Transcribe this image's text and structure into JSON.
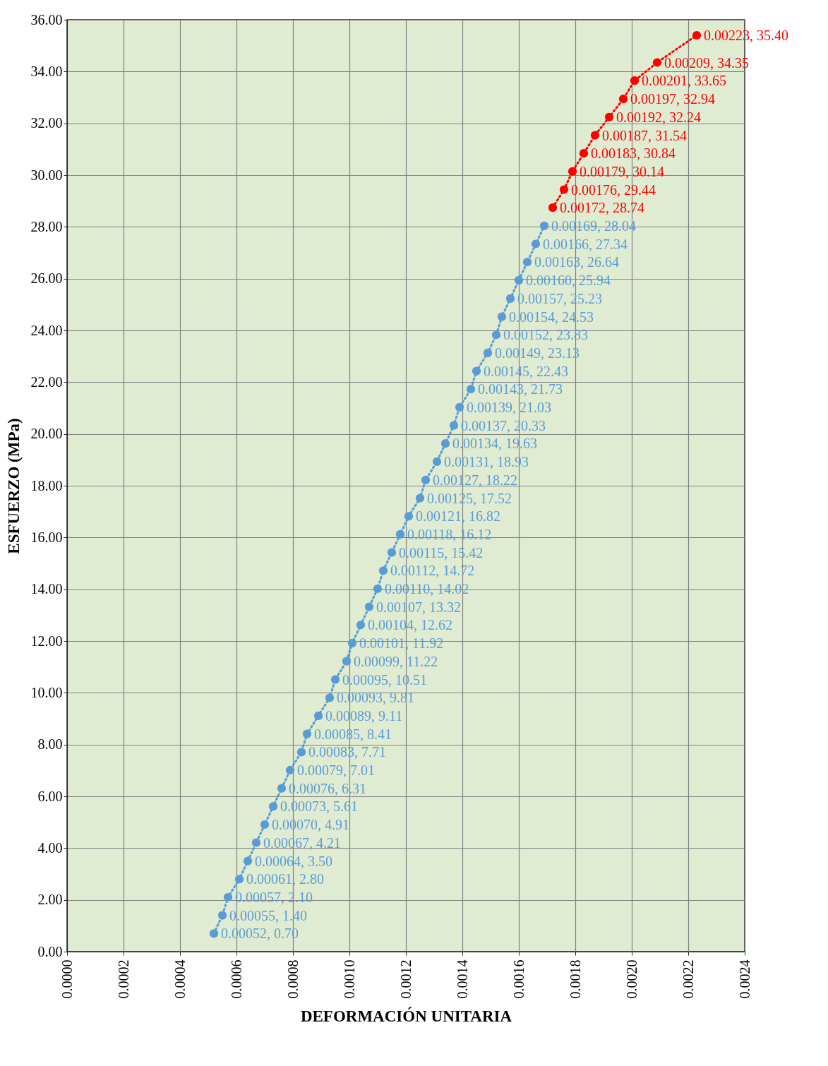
{
  "chart_data": {
    "type": "line",
    "xlabel": "DEFORMACIÓN UNITARIA",
    "ylabel": "ESFUERZO (MPa)",
    "xlim": [
      0,
      0.0024
    ],
    "ylim": [
      0,
      36
    ],
    "xticks": [
      {
        "value": 0,
        "label": "0.0000"
      },
      {
        "value": 0.0002,
        "label": "0.0002"
      },
      {
        "value": 0.0004,
        "label": "0.0004"
      },
      {
        "value": 0.0006,
        "label": "0.0006"
      },
      {
        "value": 0.0008,
        "label": "0.0008"
      },
      {
        "value": 0.001,
        "label": "0.0010"
      },
      {
        "value": 0.0012,
        "label": "0.0012"
      },
      {
        "value": 0.0014,
        "label": "0.0014"
      },
      {
        "value": 0.0016,
        "label": "0.0016"
      },
      {
        "value": 0.0018,
        "label": "0.0018"
      },
      {
        "value": 0.002,
        "label": "0.0020"
      },
      {
        "value": 0.0022,
        "label": "0.0022"
      },
      {
        "value": 0.0024,
        "label": "0.0024"
      }
    ],
    "yticks": [
      {
        "value": 0,
        "label": "0.00"
      },
      {
        "value": 2,
        "label": "2.00"
      },
      {
        "value": 4,
        "label": "4.00"
      },
      {
        "value": 6,
        "label": "6.00"
      },
      {
        "value": 8,
        "label": "8.00"
      },
      {
        "value": 10,
        "label": "10.00"
      },
      {
        "value": 12,
        "label": "12.00"
      },
      {
        "value": 14,
        "label": "14.00"
      },
      {
        "value": 16,
        "label": "16.00"
      },
      {
        "value": 18,
        "label": "18.00"
      },
      {
        "value": 20,
        "label": "20.00"
      },
      {
        "value": 22,
        "label": "22.00"
      },
      {
        "value": 24,
        "label": "24.00"
      },
      {
        "value": 26,
        "label": "26.00"
      },
      {
        "value": 28,
        "label": "28.00"
      },
      {
        "value": 30,
        "label": "30.00"
      },
      {
        "value": 32,
        "label": "32.00"
      },
      {
        "value": 34,
        "label": "34.00"
      },
      {
        "value": 36,
        "label": "36.00"
      }
    ],
    "grid": true,
    "marker": "circle",
    "line_style": "dotted",
    "series": [
      {
        "color": "#5b9bd5",
        "x": [
          0.00052,
          0.00055,
          0.00057,
          0.00061,
          0.00064,
          0.00067,
          0.0007,
          0.00073,
          0.00076,
          0.00079,
          0.00083,
          0.00085,
          0.00089,
          0.00093,
          0.00095,
          0.00099,
          0.00101,
          0.00104,
          0.00107,
          0.0011,
          0.00112,
          0.00115,
          0.00118,
          0.00121,
          0.00125,
          0.00127,
          0.00131,
          0.00134,
          0.00137,
          0.00139,
          0.00143,
          0.00145,
          0.00149,
          0.00152,
          0.00154,
          0.00157,
          0.0016,
          0.00163,
          0.00166,
          0.00169
        ],
        "values": [
          0.7,
          1.4,
          2.1,
          2.8,
          3.5,
          4.21,
          4.91,
          5.61,
          6.31,
          7.01,
          7.71,
          8.41,
          9.11,
          9.81,
          10.51,
          11.22,
          11.92,
          12.62,
          13.32,
          14.02,
          14.72,
          15.42,
          16.12,
          16.82,
          17.52,
          18.22,
          18.93,
          19.63,
          20.33,
          21.03,
          21.73,
          22.43,
          23.13,
          23.83,
          24.53,
          25.23,
          25.94,
          26.64,
          27.34,
          28.04
        ],
        "value_labels": [
          "0.00052, 0.70",
          "0.00055, 1.40",
          "0.00057, 2.10",
          "0.00061, 2.80",
          "0.00064, 3.50",
          "0.00067, 4.21",
          "0.00070, 4.91",
          "0.00073, 5.61",
          "0.00076, 6.31",
          "0.00079, 7.01",
          "0.00083, 7.71",
          "0.00085, 8.41",
          "0.00089, 9.11",
          "0.00093, 9.81",
          "0.00095, 10.51",
          "0.00099, 11.22",
          "0.00101, 11.92",
          "0.00104, 12.62",
          "0.00107, 13.32",
          "0.00110, 14.02",
          "0.00112, 14.72",
          "0.00115, 15.42",
          "0.00118, 16.12",
          "0.00121, 16.82",
          "0.00125, 17.52",
          "0.00127, 18.22",
          "0.00131, 18.93",
          "0.00134, 19.63",
          "0.00137, 20.33",
          "0.00139, 21.03",
          "0.00143, 21.73",
          "0.00145, 22.43",
          "0.00149, 23.13",
          "0.00152, 23.83",
          "0.00154, 24.53",
          "0.00157, 25.23",
          "0.00160, 25.94",
          "0.00163, 26.64",
          "0.00166, 27.34",
          "0.00169, 28.04"
        ]
      },
      {
        "color": "#ff0000",
        "x": [
          0.00172,
          0.00176,
          0.00179,
          0.00183,
          0.00187,
          0.00192,
          0.00197,
          0.00201,
          0.00209,
          0.00223
        ],
        "values": [
          28.74,
          29.44,
          30.14,
          30.84,
          31.54,
          32.24,
          32.94,
          33.65,
          34.35,
          35.4
        ],
        "value_labels": [
          "0.00172, 28.74",
          "0.00176, 29.44",
          "0.00179, 30.14",
          "0.00183, 30.84",
          "0.00187, 31.54",
          "0.00192, 32.24",
          "0.00197, 32.94",
          "0.00201, 33.65",
          "0.00209, 34.35",
          "0.00223, 35.40"
        ]
      }
    ]
  }
}
